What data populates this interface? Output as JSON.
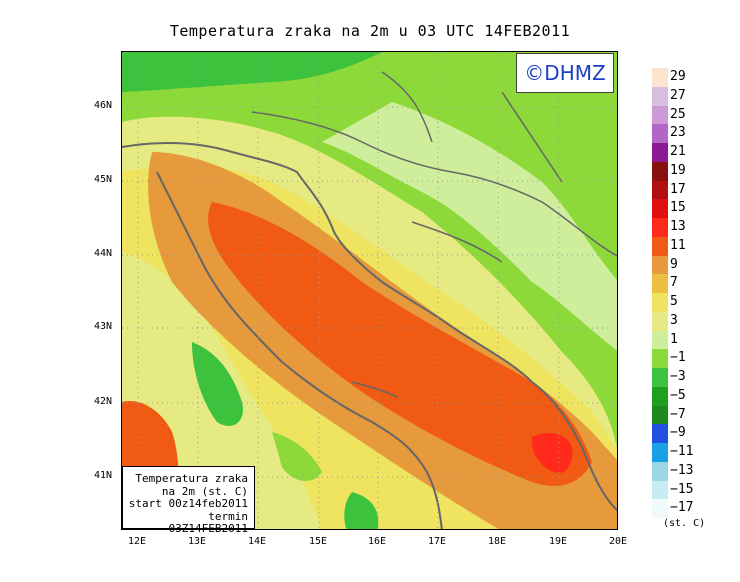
{
  "title": "Temperatura zraka na 2m u 03 UTC 14FEB2011",
  "watermark": "©DHMZ",
  "info_box": {
    "line1": "Temperatura zraka",
    "line2": "na 2m (st. C)",
    "line3": "start 00z14feb2011",
    "line4": "termin 03Z14FEB2011"
  },
  "lat_labels": [
    "46N",
    "45N",
    "44N",
    "43N",
    "42N",
    "41N"
  ],
  "lon_labels": [
    "12E",
    "13E",
    "14E",
    "15E",
    "16E",
    "17E",
    "18E",
    "19E",
    "20E"
  ],
  "colorbar": {
    "unit": "(st. C)",
    "labels": [
      "29",
      "27",
      "25",
      "23",
      "21",
      "19",
      "17",
      "15",
      "13",
      "11",
      "9",
      "7",
      "5",
      "3",
      "1",
      "−1",
      "−3",
      "−5",
      "−7",
      "−9",
      "−11",
      "−13",
      "−15",
      "−17"
    ],
    "colors": [
      "#fde4cf",
      "#d8bfe0",
      "#cc99d6",
      "#b266c6",
      "#8c1a96",
      "#8a1010",
      "#b21010",
      "#e01010",
      "#ff2a1a",
      "#f05a12",
      "#e69a3c",
      "#ebc040",
      "#efe460",
      "#e6ea82",
      "#cfee9c",
      "#8ed93a",
      "#3cc23c",
      "#1ea01e",
      "#1e8a1e",
      "#2050e0",
      "#1aa0e6",
      "#9ad6e6",
      "#c7ecf2",
      "#f0fafa"
    ]
  },
  "colors": {
    "green": "#8ed93a",
    "light_green": "#cfee9c",
    "pale_yellow": "#e6ea82",
    "yellow": "#efe460",
    "light_orange": "#ebc040",
    "orange": "#e69a3c",
    "red_orange": "#f05a12",
    "red": "#ff2a1a",
    "dark_green": "#3cc23c",
    "border": "#666666"
  }
}
